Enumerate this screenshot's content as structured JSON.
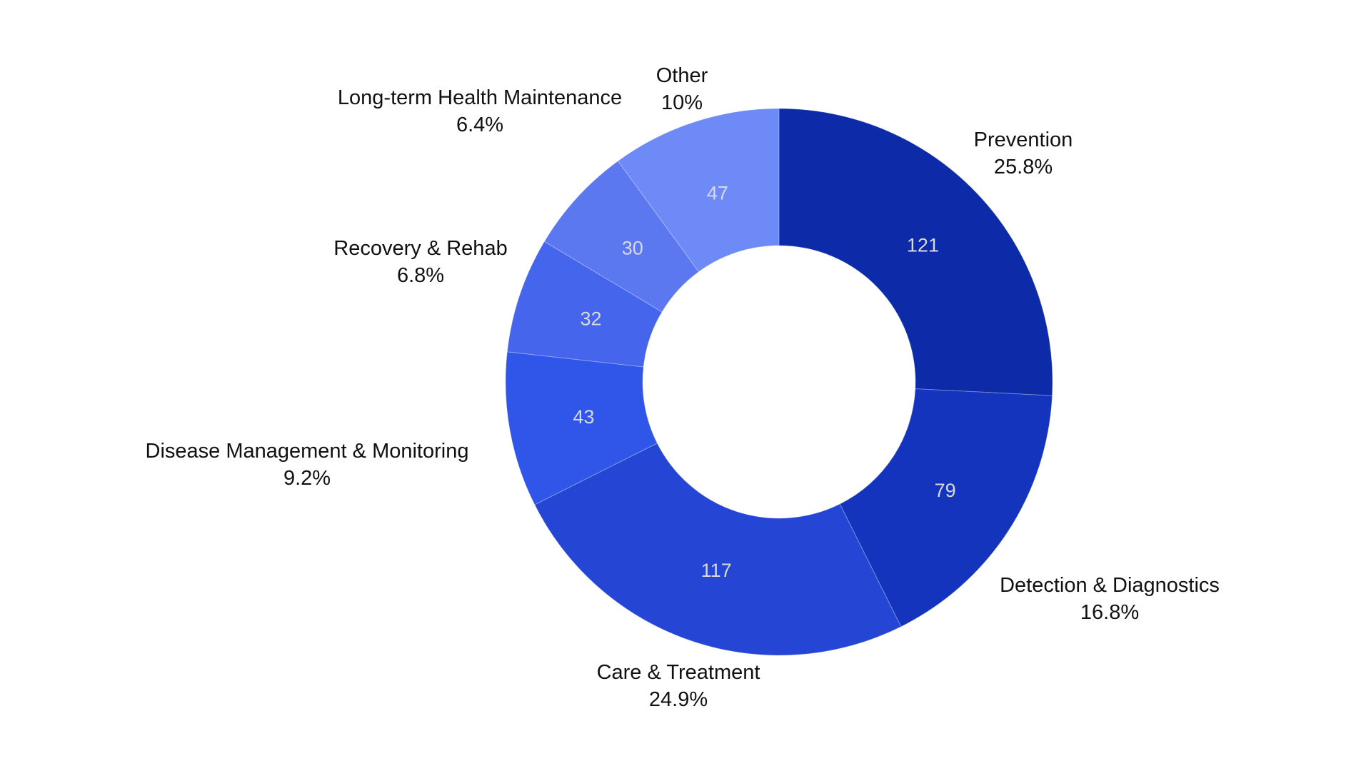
{
  "chart_data": {
    "type": "pie",
    "subtype": "donut",
    "title": "",
    "hole_ratio": 0.5,
    "direction": "clockwise",
    "start_angle": "top",
    "total": 469,
    "background": "#ffffff",
    "value_label_color": "#d9d9de",
    "category_label_color": "#111111",
    "legend": "none",
    "slices": [
      {
        "label": "Prevention",
        "value": 121,
        "percent": "25.8%",
        "color": "#0d2aa9"
      },
      {
        "label": "Detection & Diagnostics",
        "value": 79,
        "percent": "16.8%",
        "color": "#1434bd"
      },
      {
        "label": "Care & Treatment",
        "value": 117,
        "percent": "24.9%",
        "color": "#2546d4"
      },
      {
        "label": "Disease Management & Monitoring",
        "value": 43,
        "percent": "9.2%",
        "color": "#2f55e9"
      },
      {
        "label": "Recovery & Rehab",
        "value": 32,
        "percent": "6.8%",
        "color": "#4565ed"
      },
      {
        "label": "Long-term Health Maintenance",
        "value": 30,
        "percent": "6.4%",
        "color": "#5b78f1"
      },
      {
        "label": "Other",
        "value": 47,
        "percent": "10%",
        "color": "#6e8af6"
      }
    ]
  }
}
